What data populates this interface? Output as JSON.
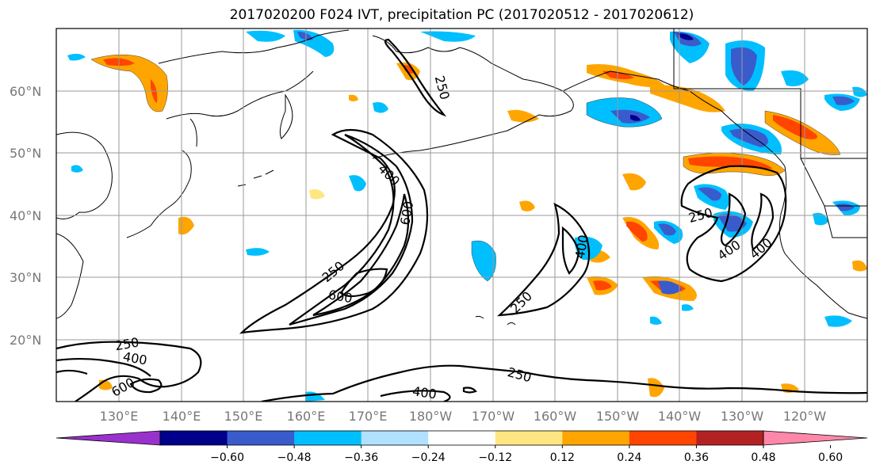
{
  "title": "2017020200 F024 IVT, precipitation PC (2017020512 - 2017020612)",
  "latitude_labels": [
    "60°N",
    "50°N",
    "40°N",
    "30°N",
    "20°N"
  ],
  "longitude_labels": [
    "130°E",
    "140°E",
    "150°E",
    "160°E",
    "170°E",
    "180°W",
    "170°W",
    "160°W",
    "150°W",
    "140°W",
    "130°W",
    "120°W"
  ],
  "ivt_contour_labels": [
    "250",
    "400",
    "600",
    "250",
    "400",
    "600",
    "250",
    "400",
    "250",
    "400",
    "400",
    "250",
    "400",
    "600",
    "250",
    "400"
  ],
  "colorbar": {
    "tick_labels": [
      "−0.60",
      "−0.48",
      "−0.36",
      "−0.24",
      "−0.12",
      "0.12",
      "0.24",
      "0.36",
      "0.48",
      "0.60"
    ],
    "colors": [
      "#9932cc",
      "#00008b",
      "#3a5bcc",
      "#00bfff",
      "#b0e2ff",
      "#ffffff",
      "#ffe680",
      "#ffa500",
      "#ff4500",
      "#b22222",
      "#ff88aa"
    ]
  }
}
